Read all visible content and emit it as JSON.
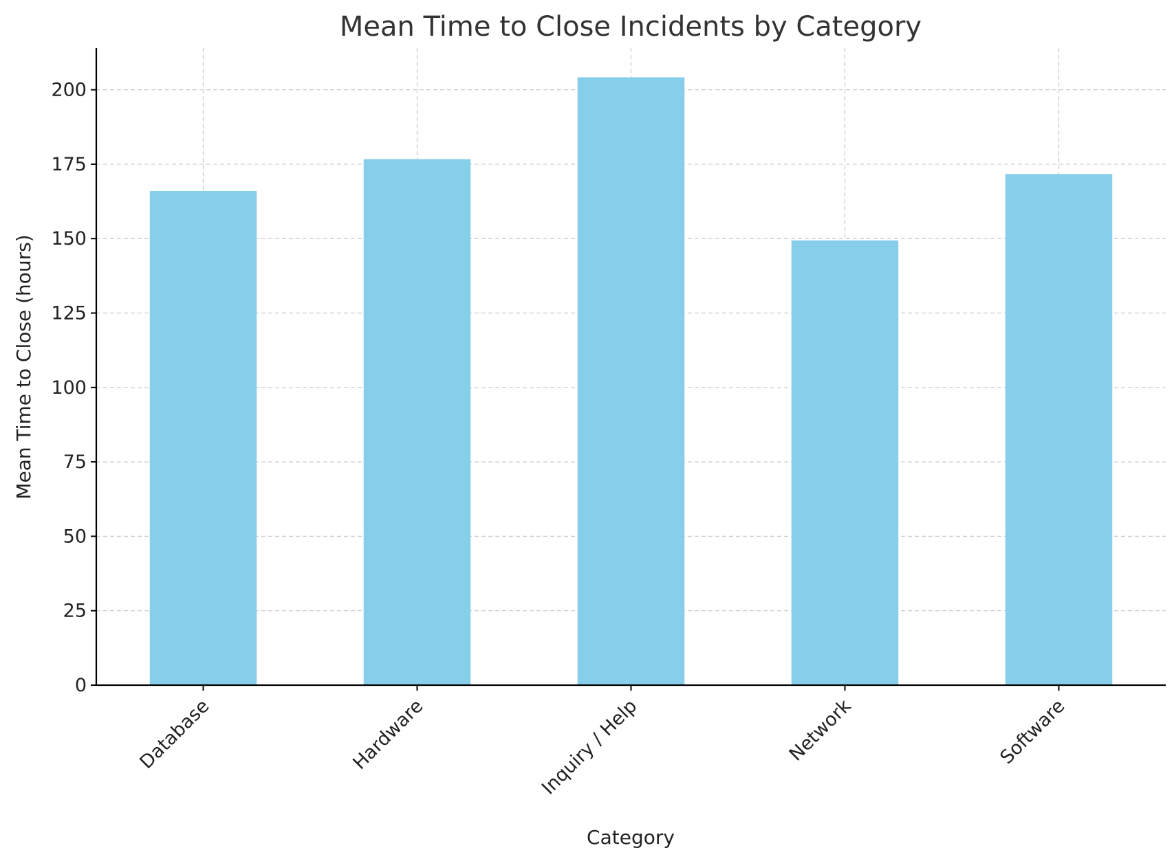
{
  "chart_data": {
    "type": "bar",
    "title": "Mean Time to Close Incidents by Category",
    "xlabel": "Category",
    "ylabel": "Mean Time to Close (hours)",
    "categories": [
      "Database",
      "Hardware",
      "Inquiry / Help",
      "Network",
      "Software"
    ],
    "values": [
      166,
      176.7,
      204.2,
      149.4,
      171.7
    ],
    "ylim": [
      0,
      214
    ],
    "yticks": [
      0,
      25,
      50,
      75,
      100,
      125,
      150,
      175,
      200
    ],
    "grid": true,
    "bar_color": "#87CEEB",
    "xtick_rotation": 45
  }
}
